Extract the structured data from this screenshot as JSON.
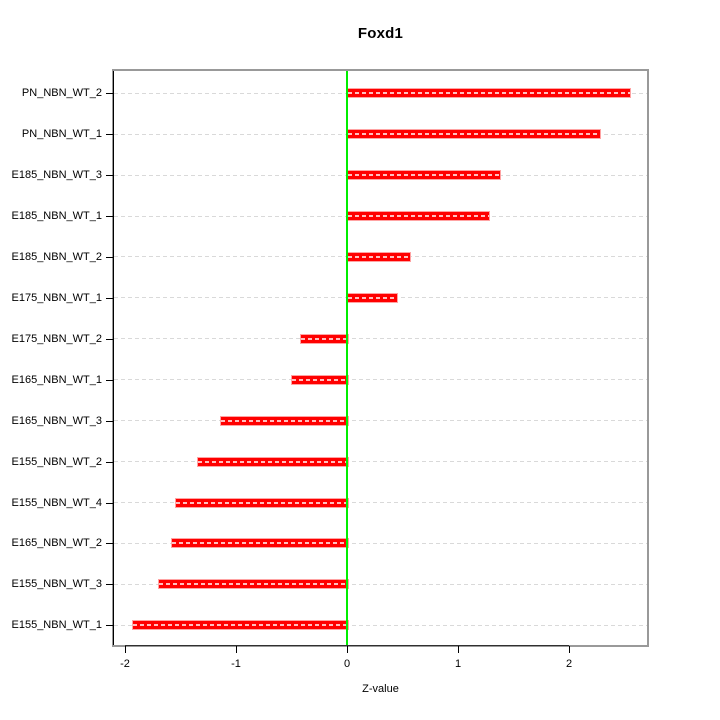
{
  "figure": {
    "title": "Foxd1",
    "xlabel": "Z-value"
  },
  "chart_data": {
    "type": "bar",
    "orientation": "horizontal",
    "title": "Foxd1",
    "xlabel": "Z-value",
    "ylabel": "",
    "legend": "none",
    "grid": "dashed gridline per category row, drawn across full plot width",
    "zero_reference_line": 0,
    "categories": [
      "PN_NBN_WT_2",
      "PN_NBN_WT_1",
      "E185_NBN_WT_3",
      "E185_NBN_WT_1",
      "E185_NBN_WT_2",
      "E175_NBN_WT_1",
      "E175_NBN_WT_2",
      "E165_NBN_WT_1",
      "E165_NBN_WT_3",
      "E155_NBN_WT_2",
      "E155_NBN_WT_4",
      "E165_NBN_WT_2",
      "E155_NBN_WT_3",
      "E155_NBN_WT_1"
    ],
    "values": [
      2.54,
      2.27,
      1.37,
      1.27,
      0.56,
      0.44,
      -0.42,
      -0.5,
      -1.14,
      -1.35,
      -1.55,
      -1.59,
      -1.7,
      -1.94
    ],
    "xlim": [
      -2.1,
      2.7
    ],
    "xticks": [
      -2,
      -1,
      0,
      1,
      2
    ],
    "xtick_labels": [
      "-2",
      "-1",
      "0",
      "1",
      "2"
    ],
    "colors": {
      "bar_fill": "#ff0000",
      "bar_border": "#ffa3a3",
      "bar_inner_dash": "rgba(255,255,255,0.75)",
      "zero_line": "#00ee00",
      "grid_line": "#d9d9d9",
      "box_border": "#999999",
      "axis": "#000000",
      "background": "#ffffff"
    }
  }
}
